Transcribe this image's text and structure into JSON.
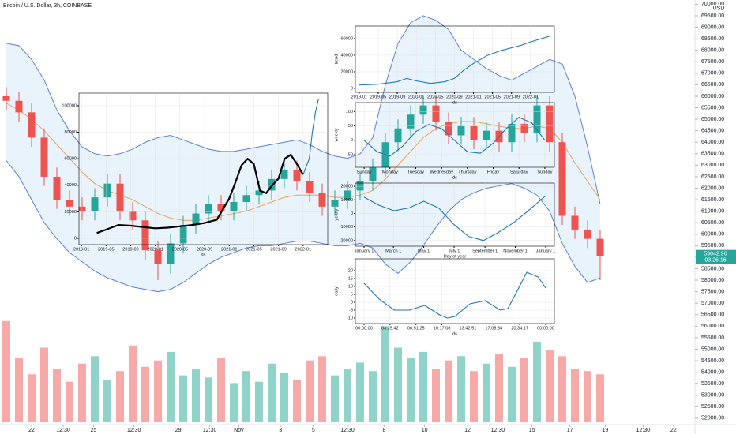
{
  "chart_data": [
    {
      "type": "candlestick",
      "title": "Bitcoin / U.S. Dollar, 3h, COINBASE",
      "currency": "USD",
      "up_color": "#26a69a",
      "down_color": "#ef5350",
      "band_color": "#5b7fe0",
      "band_fill": "#e3f0fb",
      "ma_color": "#f0a05a",
      "open": [
        66000,
        65800,
        65300,
        64200,
        62500,
        61500,
        61200,
        61000,
        61600,
        62200,
        61000,
        60600,
        59300,
        58700,
        59600,
        60400,
        60900,
        61300,
        61000,
        61400,
        61700,
        61900,
        62400,
        62800,
        62300,
        61800,
        61200,
        61500,
        61900,
        62300,
        62900,
        64000,
        64600,
        65200,
        65600,
        64900,
        64300,
        64700,
        64100,
        64500,
        64000,
        64800,
        64400,
        65600,
        64000,
        60800,
        60200,
        59800
      ],
      "high": [
        66400,
        66200,
        65700,
        64600,
        62900,
        61900,
        61600,
        62000,
        62600,
        62600,
        61400,
        61000,
        59700,
        60000,
        60800,
        61300,
        61700,
        61700,
        61800,
        62100,
        62300,
        62800,
        63200,
        63200,
        62700,
        62200,
        61900,
        62300,
        62700,
        63300,
        64400,
        65000,
        65600,
        66000,
        66000,
        65300,
        65100,
        65100,
        64900,
        64900,
        65200,
        65200,
        66000,
        66000,
        64400,
        61200,
        60600,
        60200
      ],
      "low": [
        65400,
        64900,
        63800,
        62100,
        61100,
        60800,
        60600,
        60600,
        61200,
        60600,
        60200,
        58900,
        58000,
        58300,
        59200,
        60000,
        60500,
        60600,
        60600,
        61000,
        61300,
        61500,
        62000,
        61900,
        61400,
        60800,
        60800,
        61100,
        61500,
        61900,
        62500,
        63600,
        64200,
        64800,
        64500,
        63900,
        63900,
        63700,
        63700,
        63600,
        63600,
        64000,
        64000,
        63600,
        60400,
        59800,
        59400,
        58000
      ],
      "close": [
        65800,
        65300,
        64200,
        62500,
        61500,
        61200,
        61000,
        61600,
        62200,
        61000,
        60600,
        59300,
        58700,
        59600,
        60400,
        60900,
        61300,
        61000,
        61400,
        61700,
        61900,
        62400,
        62800,
        62300,
        61800,
        61200,
        61500,
        61900,
        62300,
        62900,
        64000,
        64600,
        65200,
        65600,
        64900,
        64300,
        64700,
        64100,
        64500,
        64000,
        64800,
        64400,
        65600,
        64000,
        60800,
        60200,
        59800,
        59042.96
      ],
      "upper_band": [
        68300,
        68200,
        67600,
        66700,
        65400,
        64500,
        63800,
        63500,
        63400,
        63500,
        63700,
        64000,
        64200,
        64300,
        64100,
        63900,
        63700,
        63600,
        63600,
        63700,
        63800,
        63900,
        64000,
        64100,
        63900,
        63600,
        63400,
        63300,
        63500,
        64200,
        66500,
        68300,
        69200,
        69500,
        69300,
        68900,
        68000,
        67600,
        67200,
        66900,
        66700,
        67000,
        67300,
        67600,
        67400,
        66000,
        63800,
        61300
      ],
      "lower_band": [
        63200,
        62500,
        61500,
        60500,
        59800,
        59200,
        58800,
        58400,
        58100,
        57900,
        57700,
        57600,
        57500,
        57600,
        57900,
        58300,
        58700,
        59000,
        59200,
        59400,
        59500,
        59500,
        59600,
        59700,
        59700,
        59600,
        59500,
        59500,
        59600,
        59400,
        58700,
        58300,
        58800,
        59500,
        60300,
        61000,
        61500,
        61800,
        62000,
        62100,
        62200,
        62000,
        61700,
        61000,
        59600,
        58600,
        57900,
        58100
      ],
      "moving_average": [
        65700,
        65400,
        65000,
        64500,
        63900,
        63300,
        62700,
        62200,
        61900,
        61700,
        61500,
        61200,
        60900,
        60700,
        60600,
        60600,
        60700,
        60800,
        60900,
        61000,
        61200,
        61400,
        61600,
        61700,
        61700,
        61700,
        61600,
        61600,
        61700,
        61900,
        62400,
        63000,
        63600,
        64200,
        64600,
        64800,
        64900,
        64900,
        64800,
        64700,
        64600,
        64600,
        64700,
        64600,
        64000,
        63100,
        62300,
        61500
      ],
      "last_price": 59042.96,
      "countdown": "03:26:16",
      "xlim": [
        -0.5,
        54.5
      ],
      "xticks": [
        {
          "value": 2,
          "label": "22"
        },
        {
          "value": 4.5,
          "label": "12:30"
        },
        {
          "value": 6.9,
          "label": "25"
        },
        {
          "value": 10.1,
          "label": "12:30"
        },
        {
          "value": 13.6,
          "label": "29"
        },
        {
          "value": 16.1,
          "label": "12:30"
        },
        {
          "value": 18.4,
          "label": "Nov"
        },
        {
          "value": 21.7,
          "label": "3"
        },
        {
          "value": 24.3,
          "label": "5"
        },
        {
          "value": 27,
          "label": "12:30"
        },
        {
          "value": 29.9,
          "label": "8"
        },
        {
          "value": 33.1,
          "label": "10"
        },
        {
          "value": 36.5,
          "label": "12"
        },
        {
          "value": 38.9,
          "label": "12:30"
        },
        {
          "value": 41.6,
          "label": "15"
        },
        {
          "value": 44.6,
          "label": "17"
        },
        {
          "value": 47.4,
          "label": "19"
        },
        {
          "value": 50.4,
          "label": "12:30"
        },
        {
          "value": 52.8,
          "label": "22"
        }
      ],
      "ylim": [
        51310,
        70185
      ],
      "yticks": [
        {
          "value": 52000,
          "label": "52000.00"
        },
        {
          "value": 52500,
          "label": "52500.00"
        },
        {
          "value": 53000,
          "label": "53000.00"
        },
        {
          "value": 53500,
          "label": "53500.00"
        },
        {
          "value": 54000,
          "label": "54000.00"
        },
        {
          "value": 54500,
          "label": "54500.00"
        },
        {
          "value": 55000,
          "label": "55000.00"
        },
        {
          "value": 55500,
          "label": "55500.00"
        },
        {
          "value": 56000,
          "label": "56000.00"
        },
        {
          "value": 56500,
          "label": "56500.00"
        },
        {
          "value": 57000,
          "label": "57000.00"
        },
        {
          "value": 57500,
          "label": "57500.00"
        },
        {
          "value": 58000,
          "label": "58000.00"
        },
        {
          "value": 58500,
          "label": "58500.00"
        },
        {
          "value": 59000,
          "label": "59000.00"
        },
        {
          "value": 59500,
          "label": "59500.00"
        },
        {
          "value": 60000,
          "label": "60000.00"
        },
        {
          "value": 60500,
          "label": "60500.00"
        },
        {
          "value": 61000,
          "label": "61000.00"
        },
        {
          "value": 61500,
          "label": "61500.00"
        },
        {
          "value": 62000,
          "label": "62000.00"
        },
        {
          "value": 62500,
          "label": "62500.00"
        },
        {
          "value": 63000,
          "label": "63000.00"
        },
        {
          "value": 63500,
          "label": "63500.00"
        },
        {
          "value": 64000,
          "label": "64000.00"
        },
        {
          "value": 64500,
          "label": "64500.00"
        },
        {
          "value": 65000,
          "label": "65000.00"
        },
        {
          "value": 65500,
          "label": "65500.00"
        },
        {
          "value": 66000,
          "label": "66000.00"
        },
        {
          "value": 66500,
          "label": "66500.00"
        },
        {
          "value": 67000,
          "label": "67000.00"
        },
        {
          "value": 67500,
          "label": "67500.00"
        },
        {
          "value": 68000,
          "label": "68000.00"
        },
        {
          "value": 68500,
          "label": "68500.00"
        },
        {
          "value": 69000,
          "label": "69000.00"
        },
        {
          "value": 69500,
          "label": "69500.00"
        },
        {
          "value": 70000,
          "label": "70000.00"
        }
      ]
    },
    {
      "type": "volume",
      "up_color": "#8fd3c9",
      "down_color": "#f7a9a7",
      "ylim": [
        0,
        100
      ],
      "values": [
        95,
        60,
        45,
        70,
        50,
        38,
        55,
        62,
        40,
        48,
        72,
        52,
        58,
        66,
        44,
        50,
        42,
        60,
        36,
        48,
        38,
        55,
        46,
        40,
        58,
        62,
        44,
        50,
        56,
        48,
        90,
        70,
        60,
        66,
        50,
        58,
        62,
        48,
        55,
        64,
        52,
        60,
        75,
        68,
        62,
        50,
        48,
        45
      ]
    },
    {
      "type": "line",
      "xlabel": "ds",
      "xlim": [
        -0.4,
        40
      ],
      "ylim": [
        -4800,
        109500
      ],
      "xticks": [
        {
          "value": 0,
          "label": "2019-01"
        },
        {
          "value": 4,
          "label": "2019-05"
        },
        {
          "value": 8,
          "label": "2019-09"
        },
        {
          "value": 12,
          "label": "2020-01"
        },
        {
          "value": 16,
          "label": "2020-05"
        },
        {
          "value": 20,
          "label": "2020-09"
        },
        {
          "value": 24,
          "label": "2021-01"
        },
        {
          "value": 28,
          "label": "2021-05"
        },
        {
          "value": 32,
          "label": "2021-09"
        },
        {
          "value": 36,
          "label": "2022-01"
        }
      ],
      "yticks": [
        0,
        20000,
        40000,
        60000,
        80000,
        100000
      ],
      "series": [
        {
          "color": "#000000",
          "x": [
            2.5,
            4,
            6,
            8,
            10,
            12,
            14,
            16,
            18,
            20,
            22,
            24,
            25,
            26,
            27,
            28,
            29,
            30,
            31,
            32,
            33,
            34,
            35,
            36
          ],
          "values": [
            4000,
            6500,
            10000,
            9500,
            8500,
            7500,
            8000,
            9000,
            10000,
            11500,
            14000,
            30000,
            42000,
            55000,
            60000,
            56000,
            36000,
            34000,
            40000,
            45000,
            60000,
            63000,
            56000,
            48000
          ]
        },
        {
          "color": "#1f77b4",
          "x": [
            36,
            37,
            37.5,
            38,
            38.5
          ],
          "values": [
            48000,
            60000,
            80000,
            95000,
            105000
          ]
        }
      ]
    },
    {
      "type": "line",
      "ylabel": "trend",
      "xlabel": "ds",
      "xlim": [
        -0.8,
        41
      ],
      "ylim": [
        -4800,
        75200
      ],
      "xticks": [
        {
          "value": 0,
          "label": "2019-01"
        },
        {
          "value": 4,
          "label": "2019-05"
        },
        {
          "value": 8,
          "label": "2019-09"
        },
        {
          "value": 12,
          "label": "2020-01"
        },
        {
          "value": 16,
          "label": "2020-05"
        },
        {
          "value": 20,
          "label": "2020-09"
        },
        {
          "value": 24,
          "label": "2021-01"
        },
        {
          "value": 28,
          "label": "2021-05"
        },
        {
          "value": 32,
          "label": "2021-09"
        },
        {
          "value": 36,
          "label": "2022-01"
        }
      ],
      "yticks": [
        0,
        20000,
        40000,
        60000
      ],
      "series": [
        {
          "color": "#1f77b4",
          "x": [
            0,
            4,
            8,
            10,
            12,
            15,
            18,
            20,
            22,
            24,
            27,
            30,
            34,
            36,
            40
          ],
          "values": [
            4000,
            5000,
            8000,
            12000,
            9000,
            6000,
            8000,
            12000,
            22000,
            30000,
            40000,
            46000,
            52000,
            56000,
            63000
          ]
        }
      ]
    },
    {
      "type": "line",
      "ylabel": "weekly",
      "xlabel": "ds",
      "xlim": [
        -0.34,
        7.37
      ],
      "ylim": [
        -94,
        131
      ],
      "xticks": [
        {
          "value": 0,
          "label": "Sunday"
        },
        {
          "value": 1,
          "label": "Monday"
        },
        {
          "value": 2,
          "label": "Tuesday"
        },
        {
          "value": 3,
          "label": "Wednesday"
        },
        {
          "value": 4,
          "label": "Thursday"
        },
        {
          "value": 5,
          "label": "Friday"
        },
        {
          "value": 6,
          "label": "Saturday"
        },
        {
          "value": 7,
          "label": "Sunday"
        }
      ],
      "yticks": [
        -50,
        0,
        50,
        100
      ],
      "series": [
        {
          "color": "#1f77b4",
          "x": [
            0,
            0.5,
            1,
            1.5,
            2,
            2.5,
            3,
            3.5,
            4,
            4.5,
            5,
            5.5,
            6,
            6.5,
            7
          ],
          "values": [
            0,
            -40,
            -55,
            -20,
            30,
            55,
            40,
            0,
            -40,
            -45,
            -10,
            40,
            80,
            60,
            0
          ]
        }
      ]
    },
    {
      "type": "line",
      "ylabel": "yearly",
      "xlabel": "Day of year",
      "xlim": [
        -17.5,
        382.5
      ],
      "ylim": [
        -24200,
        22400
      ],
      "xticks": [
        {
          "value": 0,
          "label": "January 1"
        },
        {
          "value": 59,
          "label": "March 1"
        },
        {
          "value": 120,
          "label": "May 1"
        },
        {
          "value": 181,
          "label": "July 1"
        },
        {
          "value": 243,
          "label": "September 1"
        },
        {
          "value": 304,
          "label": "November 1"
        },
        {
          "value": 365,
          "label": "January 1"
        }
      ],
      "yticks": [
        -20000,
        -10000,
        0,
        10000,
        20000
      ],
      "series": [
        {
          "color": "#1f77b4",
          "x": [
            0,
            30,
            60,
            90,
            120,
            150,
            180,
            210,
            240,
            270,
            300,
            330,
            365
          ],
          "values": [
            12000,
            6000,
            2000,
            4000,
            9000,
            4000,
            -8000,
            -17000,
            -20000,
            -14000,
            -7000,
            2000,
            13000
          ]
        }
      ]
    },
    {
      "type": "line",
      "ylabel": "daily",
      "xlabel": "ds",
      "xlim": [
        -1.15,
        25.15
      ],
      "ylim": [
        -13.5,
        27.5
      ],
      "xticks": [
        {
          "value": 0,
          "label": "00:00:00"
        },
        {
          "value": 3.4283,
          "label": "03:25:42"
        },
        {
          "value": 6.8569,
          "label": "06:51:25"
        },
        {
          "value": 10.2856,
          "label": "10:17:08"
        },
        {
          "value": 13.7142,
          "label": "13:42:51"
        },
        {
          "value": 17.1428,
          "label": "17:08:34"
        },
        {
          "value": 20.5714,
          "label": "20:34:17"
        },
        {
          "value": 24,
          "label": "00:00:00"
        }
      ],
      "yticks": [
        -10,
        -5,
        0,
        5,
        10,
        15,
        20
      ],
      "series": [
        {
          "color": "#1f77b4",
          "x": [
            0,
            2,
            4,
            6,
            8,
            10,
            11,
            12,
            14,
            16,
            18,
            19,
            20,
            21.5,
            23,
            24
          ],
          "values": [
            12,
            2,
            -5,
            -5,
            -2,
            -8,
            -10,
            -9,
            -1,
            1,
            -5,
            -4,
            5,
            19,
            16,
            9
          ]
        }
      ]
    }
  ]
}
